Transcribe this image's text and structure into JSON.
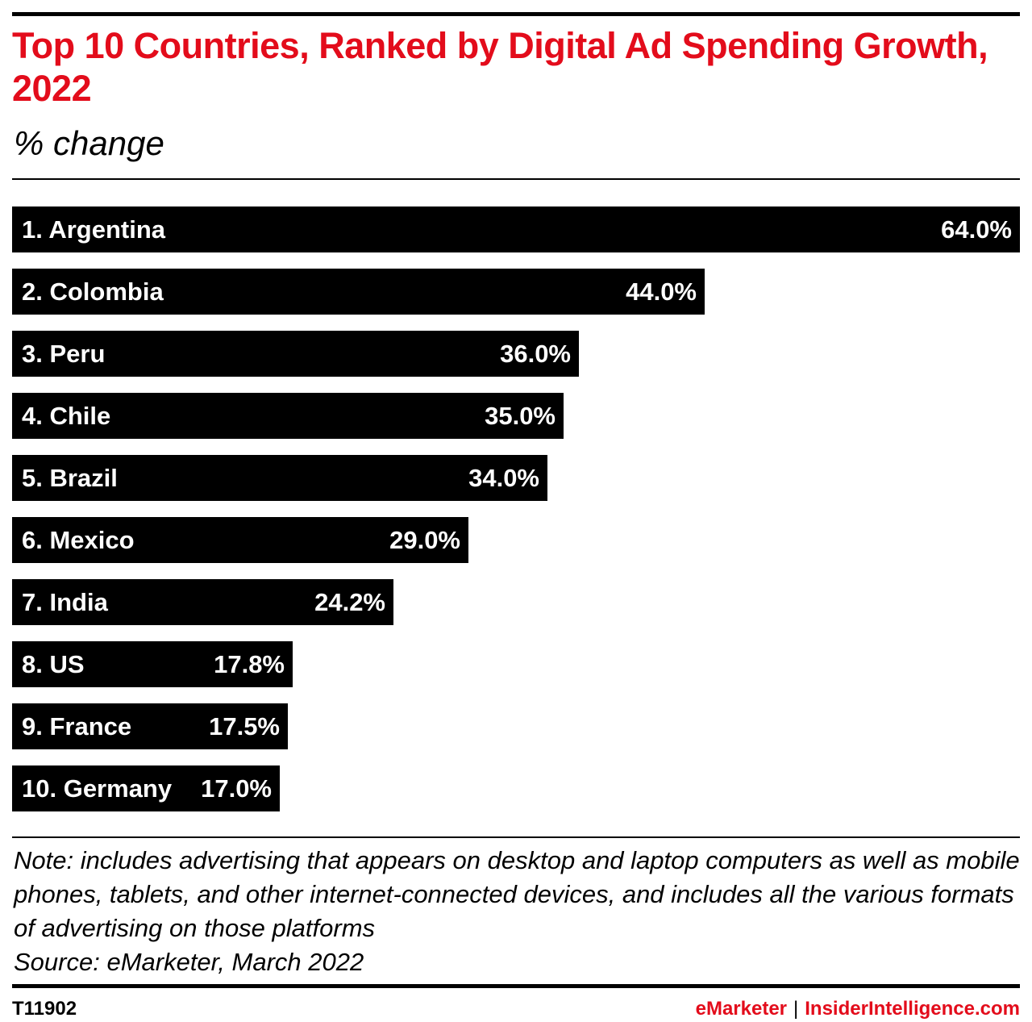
{
  "header": {
    "title": "Top 10 Countries, Ranked by Digital Ad Spending Growth, 2022",
    "subtitle": "% change"
  },
  "chart_data": {
    "type": "bar",
    "orientation": "horizontal",
    "categories": [
      "1. Argentina",
      "2. Colombia",
      "3. Peru",
      "4. Chile",
      "5. Brazil",
      "6. Mexico",
      "7. India",
      "8. US",
      "9. France",
      "10. Germany"
    ],
    "values": [
      64.0,
      44.0,
      36.0,
      35.0,
      34.0,
      29.0,
      24.2,
      17.8,
      17.5,
      17.0
    ],
    "value_labels": [
      "64.0%",
      "44.0%",
      "36.0%",
      "35.0%",
      "34.0%",
      "29.0%",
      "24.2%",
      "17.8%",
      "17.5%",
      "17.0%"
    ],
    "xlim": [
      0,
      64
    ],
    "grid": false,
    "legend": "none",
    "bar_color": "#000000",
    "label_color": "#ffffff"
  },
  "footer": {
    "note": "Note: includes advertising that appears on desktop and laptop computers as well as mobile phones, tablets, and other internet-connected devices, and includes all the various formats of advertising on those platforms",
    "source": "Source: eMarketer, March 2022",
    "chart_id": "T11902",
    "brand_left": "eMarketer",
    "brand_separator": "|",
    "brand_right": "InsiderIntelligence.com"
  },
  "colors": {
    "accent": "#e30c1b",
    "text": "#000000",
    "background": "#ffffff"
  }
}
